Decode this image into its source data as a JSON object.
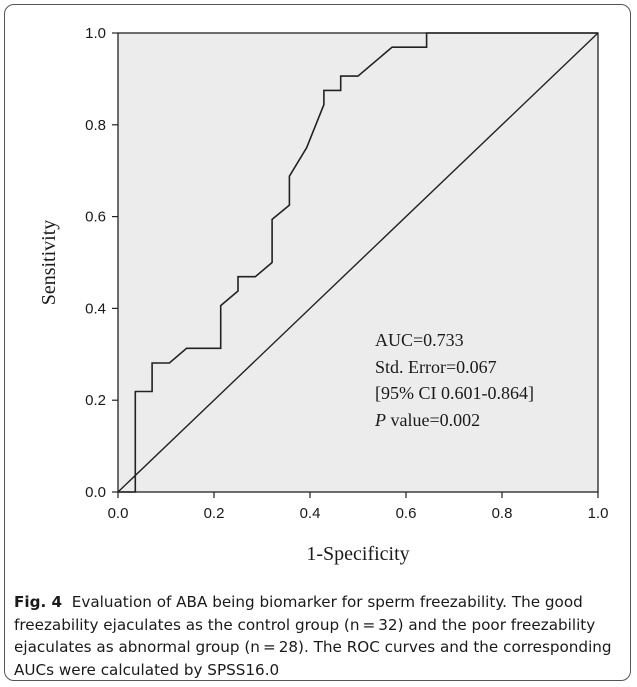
{
  "chart_data": {
    "type": "line",
    "xlabel": "1-Specificity",
    "ylabel": "Sensitivity",
    "xlim": [
      0.0,
      1.0
    ],
    "ylim": [
      0.0,
      1.0
    ],
    "x_ticks": [
      "0.0",
      "0.2",
      "0.4",
      "0.6",
      "0.8",
      "1.0"
    ],
    "y_ticks": [
      "0.0",
      "0.2",
      "0.4",
      "0.6",
      "0.8",
      "1.0"
    ],
    "grid": false,
    "plot_background": "#ececec",
    "series": [
      {
        "kind": "roc-curve",
        "color": "#222222",
        "points": [
          [
            0.0,
            0.0
          ],
          [
            0.036,
            0.0
          ],
          [
            0.036,
            0.219
          ],
          [
            0.071,
            0.219
          ],
          [
            0.071,
            0.281
          ],
          [
            0.107,
            0.281
          ],
          [
            0.143,
            0.313
          ],
          [
            0.214,
            0.313
          ],
          [
            0.214,
            0.406
          ],
          [
            0.25,
            0.438
          ],
          [
            0.25,
            0.469
          ],
          [
            0.286,
            0.469
          ],
          [
            0.321,
            0.5
          ],
          [
            0.321,
            0.594
          ],
          [
            0.357,
            0.625
          ],
          [
            0.357,
            0.688
          ],
          [
            0.393,
            0.75
          ],
          [
            0.429,
            0.844
          ],
          [
            0.429,
            0.875
          ],
          [
            0.464,
            0.875
          ],
          [
            0.464,
            0.906
          ],
          [
            0.5,
            0.906
          ],
          [
            0.571,
            0.969
          ],
          [
            0.643,
            0.969
          ],
          [
            0.643,
            1.0
          ],
          [
            1.0,
            1.0
          ]
        ]
      },
      {
        "kind": "reference-line",
        "color": "#222222",
        "points": [
          [
            0.0,
            0.0
          ],
          [
            1.0,
            1.0
          ]
        ]
      }
    ],
    "annotations": {
      "auc": "AUC=0.733",
      "std_error": "Std. Error=0.067",
      "ci": "[95% CI 0.601-0.864]",
      "p_label": "P",
      "p_value": " value=0.002"
    }
  },
  "caption": {
    "label": "Fig. 4",
    "text": "Evaluation of ABA being biomarker for sperm freezability. The good freezability ejaculates as the control group (n = 32) and the poor freezability ejaculates as abnormal group (n = 28). The ROC curves and the corresponding AUCs were calculated by SPSS16.0"
  }
}
